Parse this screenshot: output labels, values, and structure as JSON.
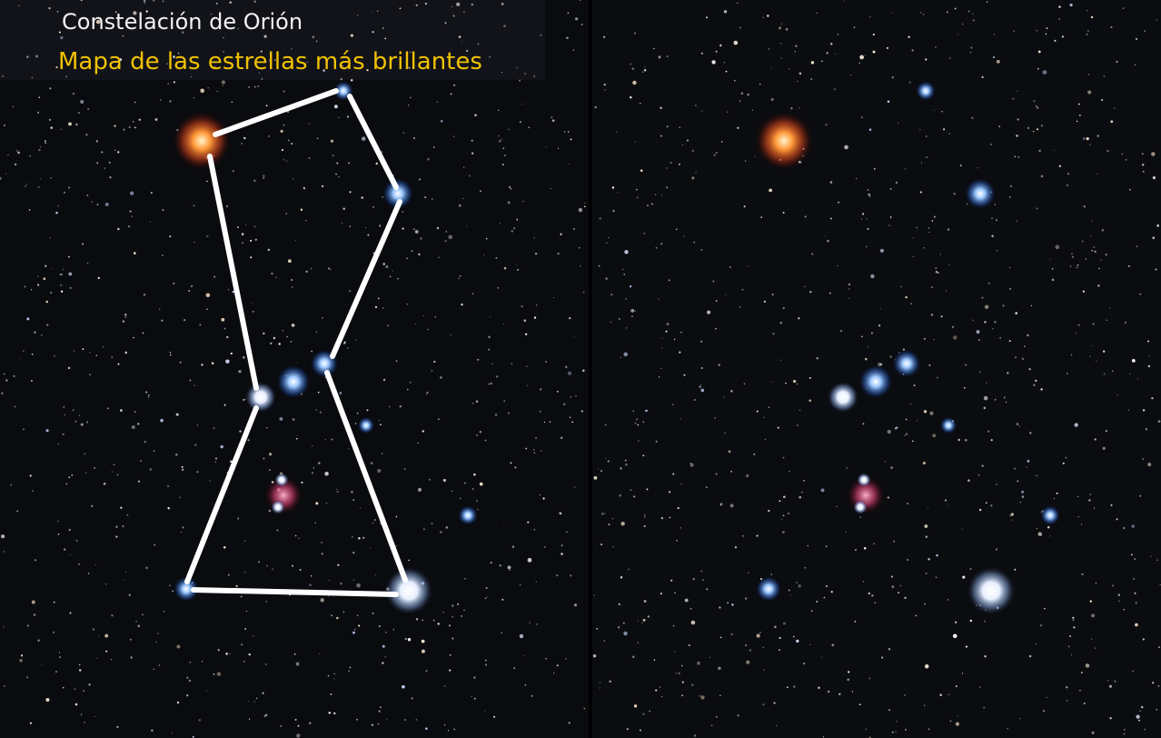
{
  "header": {
    "title": "Constelación de Orión",
    "subtitle": "Mapa de las estrellas más brillantes"
  }
}
